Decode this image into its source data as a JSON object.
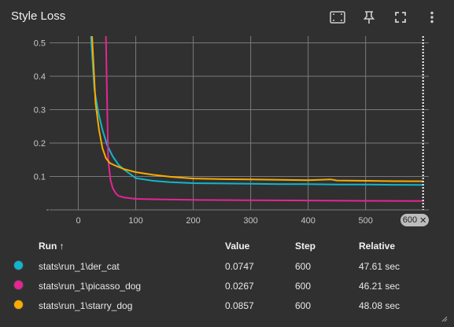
{
  "card": {
    "title": "Style Loss",
    "toolbar": {
      "fit_icon": "fit-domain-icon",
      "pin_icon": "pin-icon",
      "fullscreen_icon": "fullscreen-icon",
      "more_icon": "more-vert-icon"
    }
  },
  "chart_data": {
    "type": "line",
    "title": "",
    "xlabel": "",
    "ylabel": "",
    "x_ticks": [
      "0",
      "100",
      "200",
      "300",
      "400",
      "500"
    ],
    "y_ticks": [
      "0.1",
      "0.2",
      "0.3",
      "0.4",
      "0.5"
    ],
    "xlim": [
      -50,
      610
    ],
    "ylim": [
      0,
      0.52
    ],
    "grid": true,
    "step_marker": 600,
    "series": [
      {
        "name": "stats\\run_1\\der_cat",
        "color": "#12b5cb",
        "x": [
          22,
          28,
          35,
          42,
          50,
          60,
          70,
          80,
          100,
          130,
          160,
          200,
          250,
          300,
          350,
          400,
          450,
          500,
          550,
          600
        ],
        "y": [
          0.52,
          0.36,
          0.29,
          0.24,
          0.195,
          0.16,
          0.135,
          0.12,
          0.095,
          0.087,
          0.083,
          0.08,
          0.079,
          0.078,
          0.077,
          0.077,
          0.076,
          0.076,
          0.075,
          0.0747
        ]
      },
      {
        "name": "stats\\run_1\\picasso_dog",
        "color": "#e52592",
        "x": [
          48,
          52,
          56,
          60,
          65,
          70,
          80,
          90,
          100,
          120,
          150,
          200,
          300,
          400,
          500,
          600
        ],
        "y": [
          0.52,
          0.15,
          0.09,
          0.065,
          0.05,
          0.042,
          0.037,
          0.035,
          0.033,
          0.032,
          0.031,
          0.03,
          0.029,
          0.028,
          0.027,
          0.0267
        ]
      },
      {
        "name": "stats\\run_1\\starry_dog",
        "color": "#f9ab00",
        "x": [
          24,
          30,
          36,
          42,
          48,
          55,
          65,
          80,
          100,
          130,
          160,
          200,
          250,
          300,
          350,
          400,
          440,
          450,
          500,
          550,
          600
        ],
        "y": [
          0.52,
          0.32,
          0.24,
          0.185,
          0.155,
          0.14,
          0.132,
          0.122,
          0.113,
          0.105,
          0.099,
          0.094,
          0.092,
          0.091,
          0.09,
          0.089,
          0.091,
          0.088,
          0.087,
          0.086,
          0.0857
        ]
      }
    ]
  },
  "zoom_badge": {
    "label": "600",
    "close_icon": "close-icon"
  },
  "legend": {
    "headers": {
      "run": "Run ↑",
      "value": "Value",
      "step": "Step",
      "relative": "Relative"
    },
    "rows": [
      {
        "color": "#12b5cb",
        "run": "stats\\run_1\\der_cat",
        "value": "0.0747",
        "step": "600",
        "relative": "47.61 sec"
      },
      {
        "color": "#e52592",
        "run": "stats\\run_1\\picasso_dog",
        "value": "0.0267",
        "step": "600",
        "relative": "46.21 sec"
      },
      {
        "color": "#f9ab00",
        "run": "stats\\run_1\\starry_dog",
        "value": "0.0857",
        "step": "600",
        "relative": "48.08 sec"
      }
    ]
  }
}
